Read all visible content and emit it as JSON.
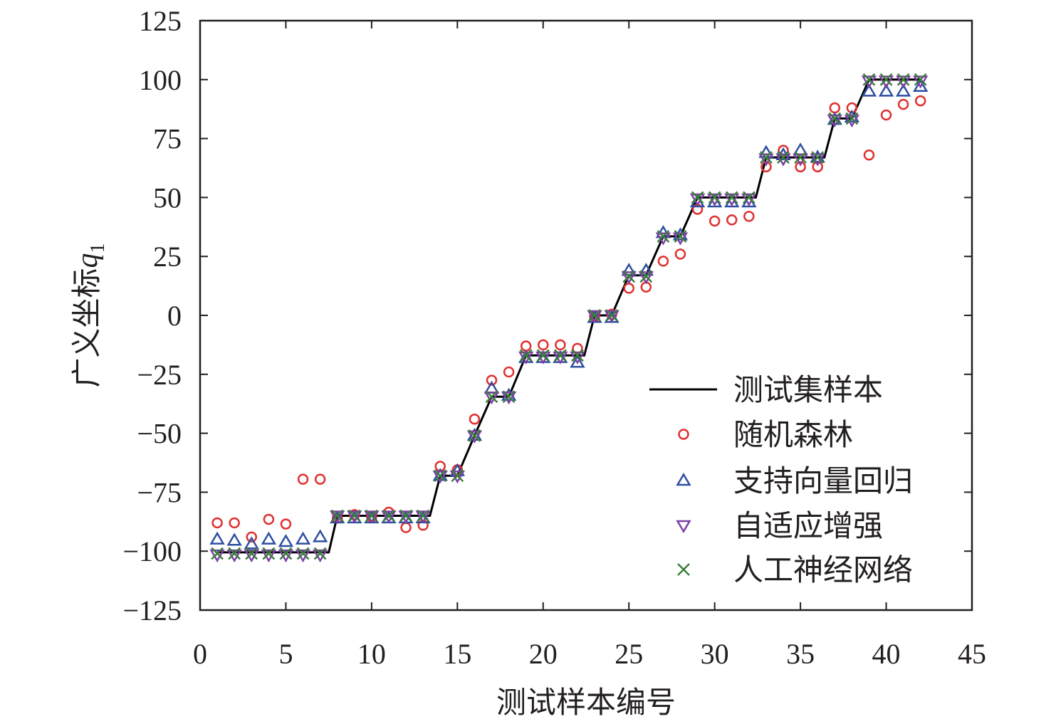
{
  "chart_data": {
    "type": "scatter",
    "xlabel": "测试样本编号",
    "ylabel_main": "广义坐标",
    "ylabel_var": "q",
    "ylabel_sub": "1",
    "xlim": [
      0,
      45
    ],
    "ylim": [
      -125,
      125
    ],
    "xticks": [
      0,
      5,
      10,
      15,
      20,
      25,
      30,
      35,
      40,
      45
    ],
    "yticks": [
      125,
      100,
      75,
      50,
      25,
      0,
      -25,
      -50,
      -75,
      -100,
      -125
    ],
    "grid": false,
    "legend_position": "bottom-right",
    "x": [
      1,
      2,
      3,
      4,
      5,
      6,
      7,
      8,
      9,
      10,
      11,
      12,
      13,
      14,
      15,
      16,
      17,
      18,
      19,
      20,
      21,
      22,
      23,
      24,
      25,
      26,
      27,
      28,
      29,
      30,
      31,
      32,
      33,
      34,
      35,
      36,
      37,
      38,
      39,
      40,
      41,
      42
    ],
    "series": [
      {
        "name": "测试集样本",
        "kind": "line",
        "color": "#000000",
        "x": [
          1,
          7.5,
          8,
          13.4,
          14,
          15,
          16,
          17,
          18,
          19,
          22.4,
          23,
          24,
          25,
          26,
          27,
          28,
          29,
          32.4,
          33,
          36.4,
          37,
          38,
          39,
          42
        ],
        "values": [
          -100.5,
          -100.5,
          -85,
          -85,
          -68,
          -68,
          -51,
          -34.5,
          -34.5,
          -17,
          -17,
          0,
          0,
          17,
          17,
          33.5,
          33.5,
          50,
          50,
          67,
          67,
          83.5,
          83.5,
          100,
          100
        ]
      },
      {
        "name": "随机森林",
        "kind": "circle",
        "color": "#e03131",
        "values": [
          -88,
          -88,
          -94,
          -86.5,
          -88.5,
          -69.5,
          -69.5,
          -86,
          -84.5,
          -85.5,
          -83.5,
          -90,
          -89,
          -64,
          -65.5,
          -44,
          -27.5,
          -24,
          -13,
          -12.5,
          -12.5,
          -14,
          -0.5,
          0.5,
          11.5,
          12,
          23,
          26,
          45,
          40,
          40.5,
          42,
          63,
          70,
          63,
          63,
          88,
          88,
          68,
          85,
          89.5,
          91
        ]
      },
      {
        "name": "支持向量回归",
        "kind": "triangle-up",
        "color": "#2e4fa0",
        "values": [
          -95,
          -95.5,
          -97,
          -95,
          -96,
          -95,
          -94,
          -86,
          -86,
          -86,
          -86,
          -86,
          -86,
          -68,
          -66,
          -51,
          -31,
          -34,
          -18,
          -18,
          -18,
          -20,
          -1,
          -1,
          19,
          19,
          35,
          34,
          48,
          48,
          48,
          48,
          69,
          68,
          70,
          67,
          83,
          84,
          95,
          95,
          95,
          97
        ]
      },
      {
        "name": "自适应增强",
        "kind": "triangle-down",
        "color": "#7e3fa6",
        "values": [
          -101.5,
          -101.5,
          -101.5,
          -101.5,
          -101.5,
          -101.5,
          -101.5,
          -85,
          -85,
          -85,
          -85,
          -85,
          -85,
          -68,
          -68,
          -51,
          -34.5,
          -34.5,
          -17.5,
          -17.5,
          -17.5,
          -17.5,
          0,
          0,
          16.5,
          16.5,
          33,
          33,
          49.5,
          49.5,
          49.5,
          49.5,
          66.5,
          66.5,
          66.5,
          66.5,
          83,
          83,
          99.5,
          99.5,
          99.5,
          99.5
        ]
      },
      {
        "name": "人工神经网络",
        "kind": "x",
        "color": "#3b7d3b",
        "values": [
          -101,
          -101,
          -101,
          -101,
          -101,
          -101,
          -101,
          -85,
          -85,
          -85,
          -85,
          -85,
          -85,
          -68,
          -68,
          -51,
          -34.5,
          -34.5,
          -17,
          -17,
          -17,
          -17,
          0,
          0,
          16.5,
          16.5,
          33.5,
          33.5,
          50,
          50,
          50,
          50,
          67,
          67,
          67,
          67,
          83.5,
          83.5,
          100,
          100,
          100,
          100
        ]
      }
    ]
  }
}
